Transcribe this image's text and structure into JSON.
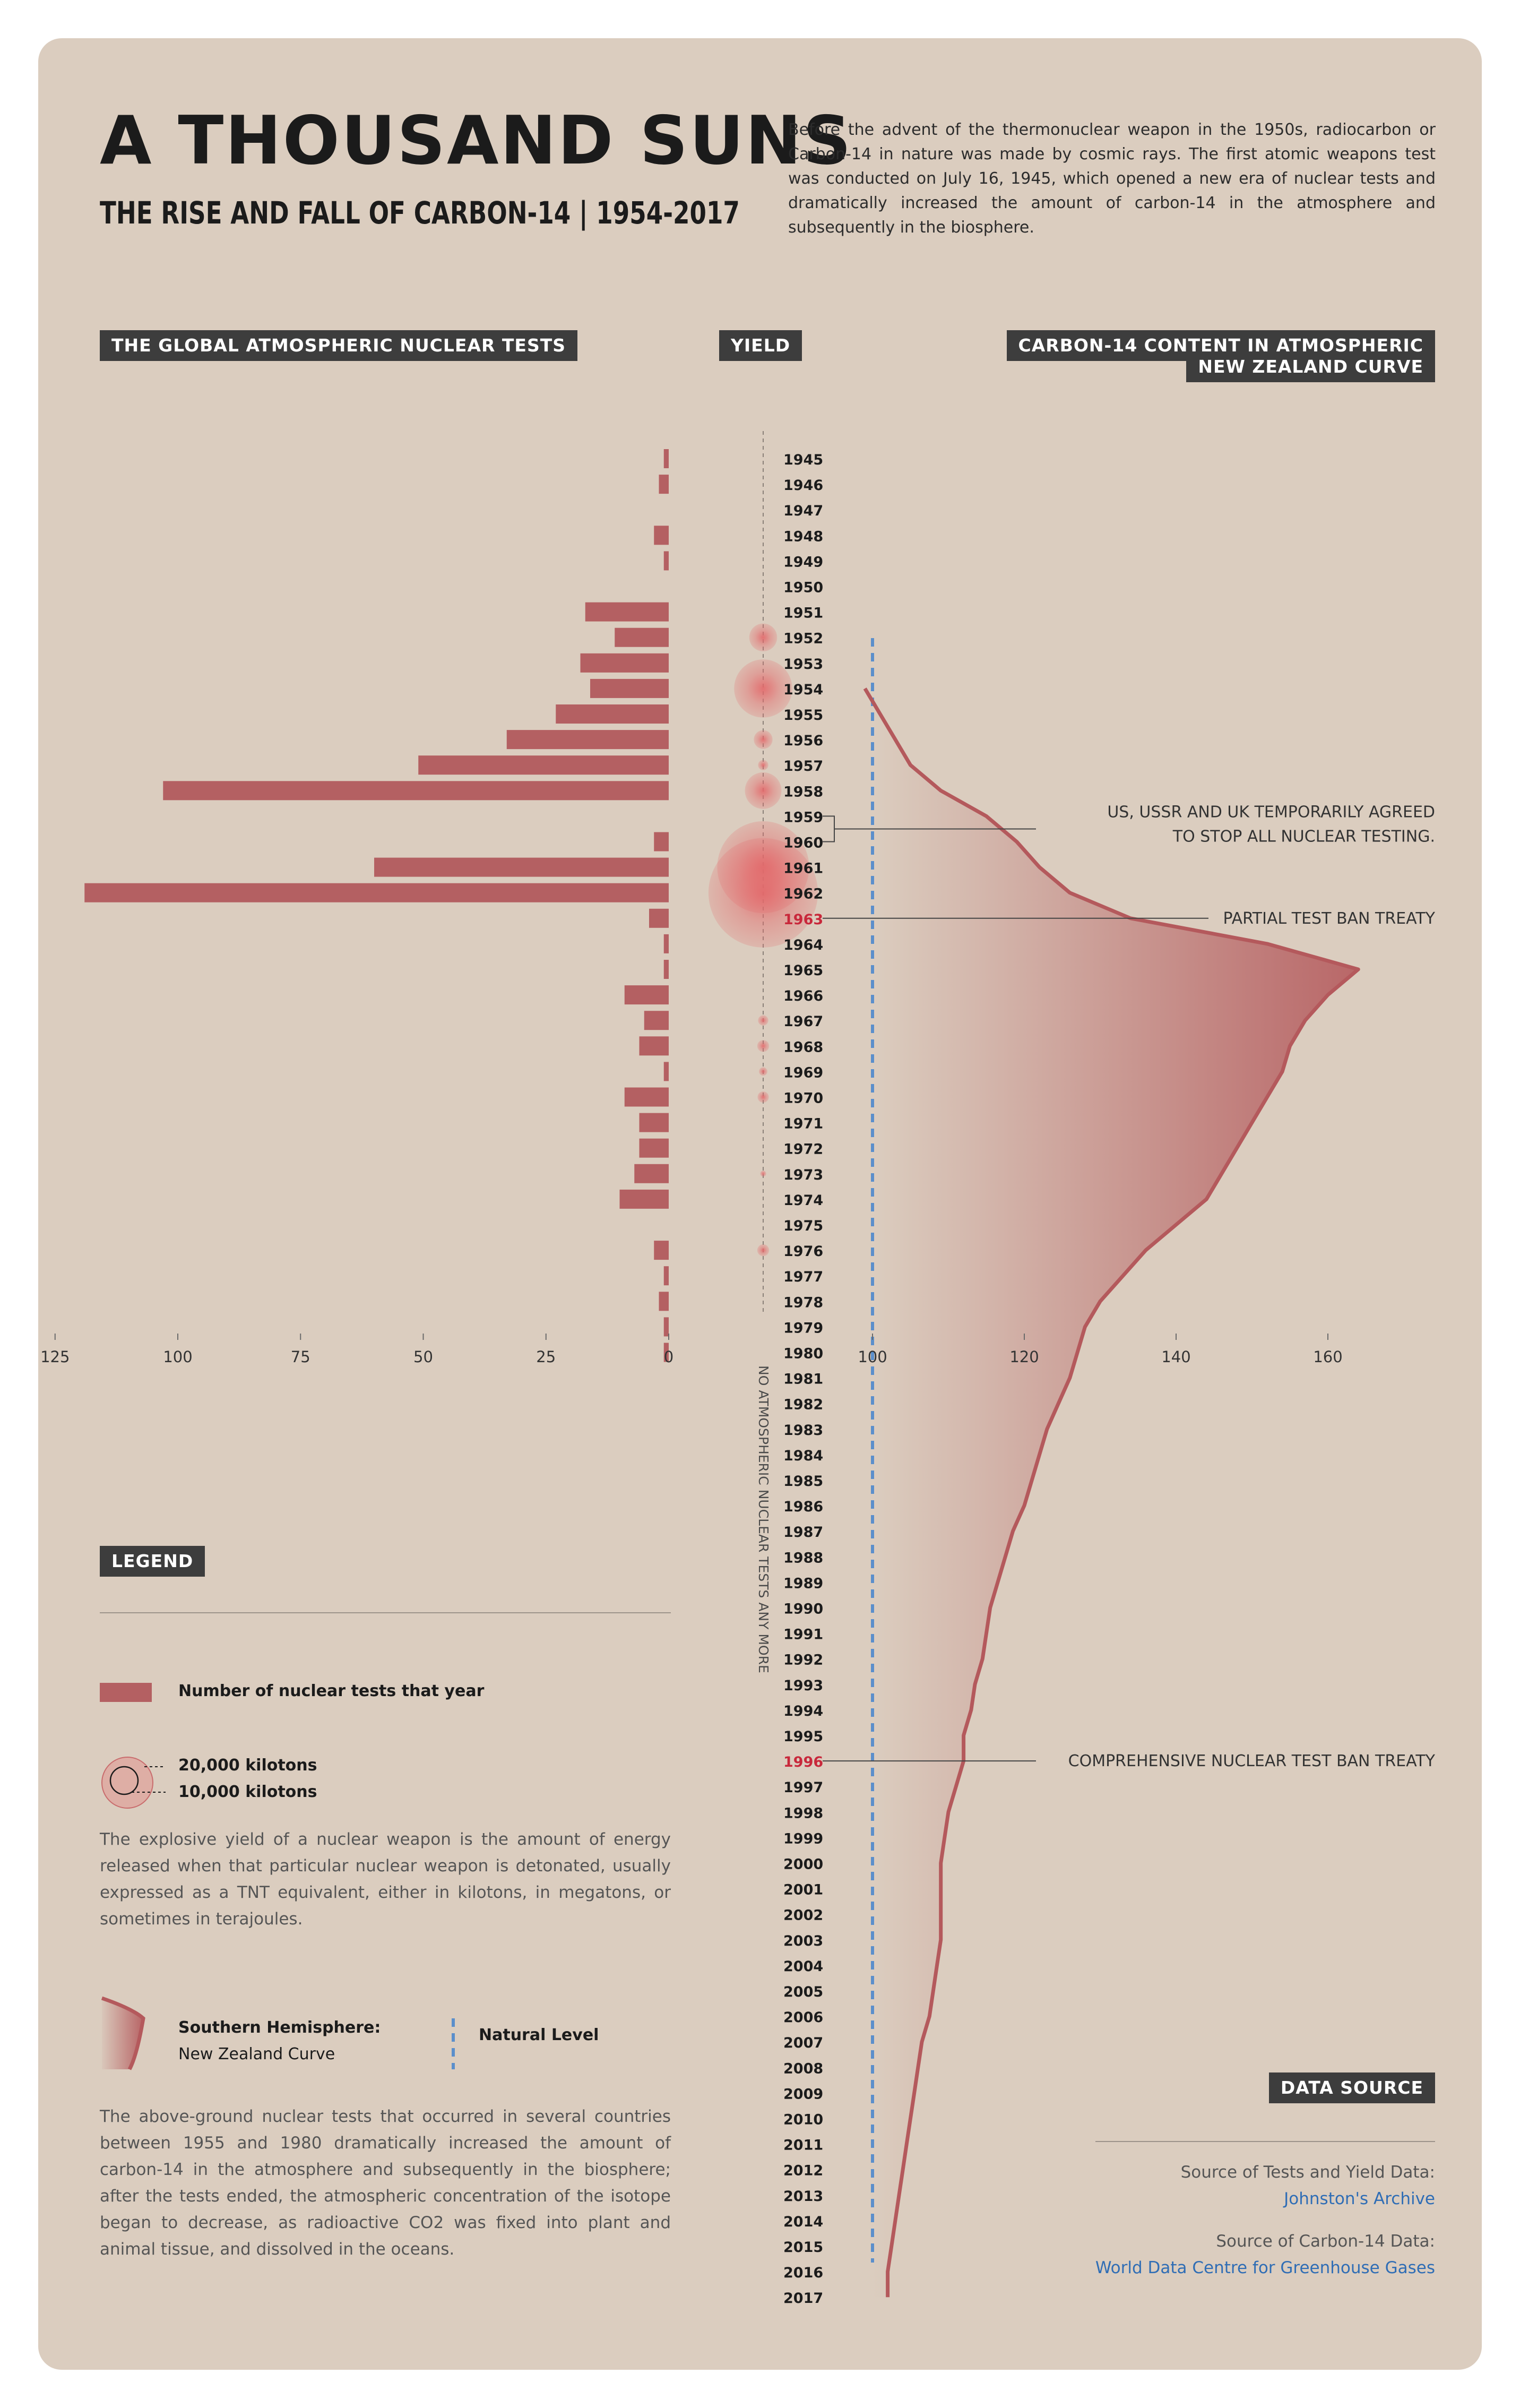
{
  "header": {
    "title": "A THOUSAND SUNS",
    "subtitle": "THE RISE AND FALL OF CARBON-14 | 1954-2017",
    "intro": "Before the advent of the thermonuclear weapon in the 1950s, radiocarbon  or Carbon-14 in nature was made by cosmic rays. The first atomic weapons test was conducted on July 16, 1945, which opened a new era of nuclear tests and dramatically increased the amount of carbon-14 in the atmosphere and subsequently in the biosphere."
  },
  "sections": {
    "tests": "THE GLOBAL ATMOSPHERIC NUCLEAR TESTS",
    "yield": "YIELD",
    "carbon_line1": "CARBON-14 CONTENT IN ATMOSPHERIC",
    "carbon_line2": "NEW ZEALAND CURVE"
  },
  "legend": {
    "title": "LEGEND",
    "bars_label": "Number of nuclear tests that year",
    "kt_20000": "20,000 kilotons",
    "kt_10000": "10,000 kilotons",
    "yield_text": "The explosive yield of a nuclear weapon is the amount of energy released when that particular nuclear weapon is detonated, usually expressed as a TNT equivalent, either in kilotons, in megatons, or sometimes in terajoules.",
    "curve_label_1": "Southern Hemisphere:",
    "curve_label_2": "New Zealand Curve",
    "natural_label": "Natural Level",
    "curve_text": "The above-ground nuclear tests that occurred in several countries between 1955 and 1980 dramatically increased the amount of carbon-14 in the atmosphere and subsequently in the biosphere; after the tests ended, the atmospheric concentration of the isotope began to decrease, as radioactive CO2 was fixed into plant and animal tissue, and dissolved in the oceans."
  },
  "data_source": {
    "title": "DATA SOURCE",
    "tests_label": "Source of Tests and Yield Data:",
    "tests_link": "Johnston's Archive",
    "carbon_label": "Source of Carbon-14 Data:",
    "carbon_link": "World Data Centre for Greenhouse Gases"
  },
  "colors": {
    "background": "#dbcdbf",
    "bar": "#b46062",
    "curve": "#b4595c",
    "yield_bubble": "#e3686a",
    "natural_level": "#5b8fcb",
    "highlight_year": "#c8283b",
    "header_box": "#3d3d3d",
    "link": "#2f6db5"
  },
  "chart_data": {
    "years": [
      1945,
      1946,
      1947,
      1948,
      1949,
      1950,
      1951,
      1952,
      1953,
      1954,
      1955,
      1956,
      1957,
      1958,
      1959,
      1960,
      1961,
      1962,
      1963,
      1964,
      1965,
      1966,
      1967,
      1968,
      1969,
      1970,
      1971,
      1972,
      1973,
      1974,
      1975,
      1976,
      1977,
      1978,
      1979,
      1980,
      1981,
      1982,
      1983,
      1984,
      1985,
      1986,
      1987,
      1988,
      1989,
      1990,
      1991,
      1992,
      1993,
      1994,
      1995,
      1996,
      1997,
      1998,
      1999,
      2000,
      2001,
      2002,
      2003,
      2004,
      2005,
      2006,
      2007,
      2008,
      2009,
      2010,
      2011,
      2012,
      2013,
      2014,
      2015,
      2016,
      2017
    ],
    "highlight_years": [
      1963,
      1996
    ],
    "no_tests_note": "NO ATMOSPHERIC NUCLEAR TESTS  ANY MORE",
    "tests": {
      "type": "bar",
      "years": [
        1945,
        1946,
        1948,
        1949,
        1951,
        1952,
        1953,
        1954,
        1955,
        1956,
        1957,
        1958,
        1960,
        1961,
        1962,
        1963,
        1964,
        1965,
        1966,
        1967,
        1968,
        1969,
        1970,
        1971,
        1972,
        1973,
        1974,
        1976,
        1977,
        1978,
        1979,
        1980
      ],
      "values": [
        1,
        2,
        3,
        1,
        17,
        11,
        18,
        16,
        23,
        33,
        51,
        103,
        3,
        60,
        119,
        4,
        1,
        1,
        9,
        5,
        6,
        1,
        9,
        6,
        6,
        7,
        10,
        3,
        1,
        2,
        1,
        1
      ],
      "xlim": [
        0,
        125
      ],
      "ticks": [
        125,
        100,
        75,
        50,
        25,
        0
      ]
    },
    "yield": {
      "type": "bubble",
      "unit": "kilotons",
      "years": [
        1952,
        1954,
        1956,
        1957,
        1958,
        1961,
        1962,
        1967,
        1968,
        1969,
        1970,
        1973,
        1976
      ],
      "values": [
        11000,
        48000,
        5000,
        1500,
        19000,
        120000,
        170000,
        1500,
        2000,
        1000,
        1800,
        500,
        2000
      ],
      "legend_sizes": [
        20000,
        10000
      ]
    },
    "carbon14": {
      "type": "area",
      "years": [
        1954,
        1955,
        1956,
        1957,
        1958,
        1959,
        1960,
        1961,
        1962,
        1963,
        1964,
        1965,
        1966,
        1967,
        1968,
        1969,
        1970,
        1971,
        1972,
        1973,
        1974,
        1975,
        1976,
        1977,
        1978,
        1979,
        1980,
        1981,
        1982,
        1983,
        1984,
        1985,
        1986,
        1987,
        1988,
        1989,
        1990,
        1991,
        1992,
        1993,
        1994,
        1995,
        1996,
        1997,
        1998,
        1999,
        2000,
        2001,
        2002,
        2003,
        2004,
        2005,
        2006,
        2007,
        2008,
        2009,
        2010,
        2011,
        2012,
        2013,
        2014,
        2015,
        2016,
        2017
      ],
      "values": [
        99,
        101,
        103,
        105,
        109,
        115,
        119,
        122,
        126,
        134,
        152,
        164,
        160,
        157,
        155,
        154,
        152,
        150,
        148,
        146,
        144,
        140,
        136,
        133,
        130,
        128,
        127,
        126,
        124.5,
        123,
        122,
        121,
        120,
        118.5,
        117.5,
        116.5,
        115.5,
        115,
        114.5,
        113.5,
        113,
        112,
        112,
        111,
        110,
        109.5,
        109,
        109,
        109,
        109,
        108.5,
        108,
        107.5,
        106.5,
        106,
        105.5,
        105,
        104.5,
        104,
        103.5,
        103,
        102.5,
        102,
        102
      ],
      "natural_level": 100,
      "xlim": [
        100,
        165
      ],
      "ticks": [
        100,
        120,
        140,
        160
      ]
    },
    "annotations": [
      {
        "text_line1": "US, USSR AND UK TEMPORARILY AGREED",
        "text_line2": "TO STOP ALL NUCLEAR TESTING.",
        "years": [
          1959,
          1960
        ]
      },
      {
        "text_line1": "PARTIAL TEST BAN TREATY",
        "text_line2": "",
        "years": [
          1963
        ]
      },
      {
        "text_line1": "COMPREHENSIVE NUCLEAR TEST BAN TREATY",
        "text_line2": "",
        "years": [
          1996
        ]
      }
    ]
  }
}
